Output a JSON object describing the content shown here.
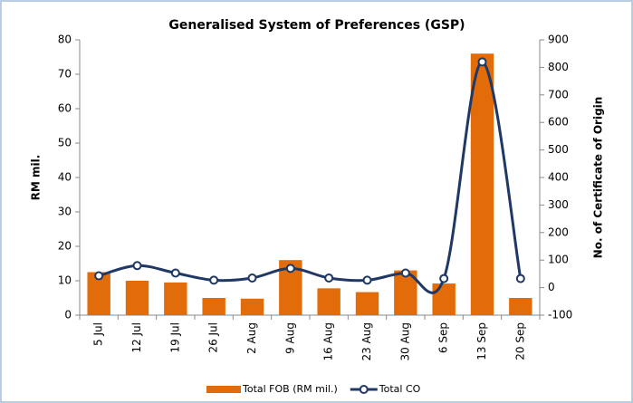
{
  "chart_data": {
    "type": "bar_line",
    "title": "Generalised System of Preferences (GSP)",
    "y_label": "RM mil.",
    "y2_label": "No. of Certificate of Origin",
    "categories": [
      "5 Jul",
      "12 Jul",
      "19 Jul",
      "26 Jul",
      "2 Aug",
      "9 Aug",
      "16 Aug",
      "23 Aug",
      "30 Aug",
      "6 Sep",
      "13 Sep",
      "20 Sep"
    ],
    "series": [
      {
        "name": "Total FOB (RM mil.)",
        "type": "bar",
        "color": "#e36c0a",
        "values": [
          12.5,
          10,
          9.5,
          5,
          4.8,
          16,
          7.8,
          6.7,
          13,
          9.2,
          76,
          5
        ]
      },
      {
        "name": "Total CO",
        "type": "line",
        "axis": "y2",
        "color": "#1f3864",
        "values": [
          43,
          80,
          53,
          27,
          35,
          70,
          35,
          27,
          53,
          33,
          820,
          33
        ]
      }
    ],
    "ylim": [
      0,
      80
    ],
    "yticks": [
      0,
      10,
      20,
      30,
      40,
      50,
      60,
      70,
      80
    ],
    "y2lim": [
      -100,
      900
    ],
    "y2ticks": [
      -100,
      0,
      100,
      200,
      300,
      400,
      500,
      600,
      700,
      800,
      900
    ],
    "legend": "bottom"
  }
}
